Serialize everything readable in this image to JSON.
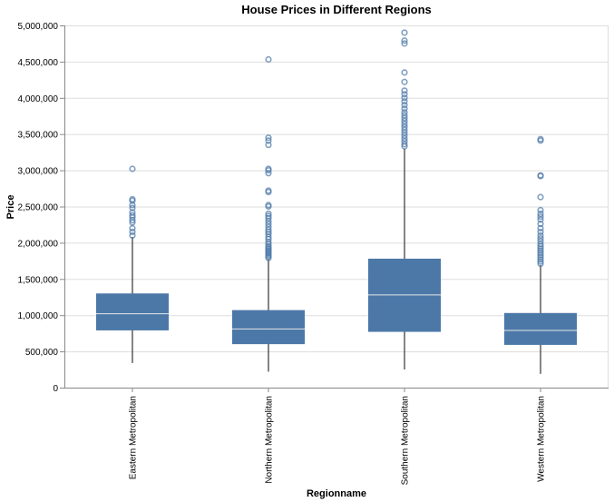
{
  "chart_data": {
    "type": "boxplot",
    "title": "House Prices in Different Regions",
    "xlabel": "Regionname",
    "ylabel": "Price",
    "ylim": [
      0,
      5000000
    ],
    "y_ticks": [
      0,
      500000,
      1000000,
      1500000,
      2000000,
      2500000,
      3000000,
      3500000,
      4000000,
      4500000,
      5000000
    ],
    "y_tick_labels": [
      "0",
      "500,000",
      "1,000,000",
      "1,500,000",
      "2,000,000",
      "2,500,000",
      "3,000,000",
      "3,500,000",
      "4,000,000",
      "4,500,000",
      "5,000,000"
    ],
    "grid": true,
    "colors": {
      "box": "#4c78a8",
      "median": "#e6e6e6",
      "whisker": "#333333",
      "outlier": "#4c78a8",
      "grid": "#dddddd",
      "axis": "#888888"
    },
    "categories": [
      "Eastern Metropolitan",
      "Northern Metropolitan",
      "Southern Metropolitan",
      "Western Metropolitan"
    ],
    "boxes": [
      {
        "category": "Eastern Metropolitan",
        "min": 340000,
        "q1": 790000,
        "median": 1020000,
        "q3": 1300000,
        "max": 2080000,
        "outliers": [
          2100000,
          2150000,
          2200000,
          2280000,
          2310000,
          2350000,
          2380000,
          2420000,
          2480000,
          2520000,
          2580000,
          2600000,
          3020000
        ]
      },
      {
        "category": "Northern Metropolitan",
        "min": 220000,
        "q1": 600000,
        "median": 810000,
        "q3": 1070000,
        "max": 1770000,
        "outliers": [
          1790000,
          1810000,
          1830000,
          1850000,
          1870000,
          1890000,
          1910000,
          1930000,
          1950000,
          1980000,
          2010000,
          2050000,
          2080000,
          2120000,
          2150000,
          2180000,
          2220000,
          2260000,
          2300000,
          2340000,
          2370000,
          2400000,
          2500000,
          2520000,
          2700000,
          2720000,
          2960000,
          3000000,
          3020000,
          3350000,
          3410000,
          3450000,
          4530000
        ]
      },
      {
        "category": "Southern Metropolitan",
        "min": 250000,
        "q1": 770000,
        "median": 1280000,
        "q3": 1780000,
        "max": 3300000,
        "outliers": [
          3330000,
          3360000,
          3400000,
          3440000,
          3480000,
          3520000,
          3560000,
          3600000,
          3640000,
          3680000,
          3720000,
          3760000,
          3800000,
          3850000,
          3900000,
          3950000,
          4000000,
          4050000,
          4100000,
          4220000,
          4350000,
          4750000,
          4790000,
          4900000
        ]
      },
      {
        "category": "Western Metropolitan",
        "min": 190000,
        "q1": 590000,
        "median": 790000,
        "q3": 1030000,
        "max": 1690000,
        "outliers": [
          1710000,
          1740000,
          1770000,
          1800000,
          1830000,
          1860000,
          1890000,
          1920000,
          1950000,
          1980000,
          2020000,
          2060000,
          2100000,
          2150000,
          2200000,
          2260000,
          2320000,
          2360000,
          2400000,
          2450000,
          2630000,
          2920000,
          2930000,
          3410000,
          3430000
        ]
      }
    ]
  }
}
